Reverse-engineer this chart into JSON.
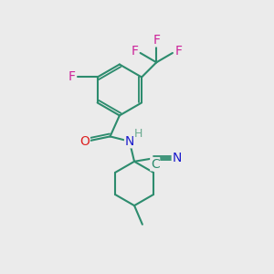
{
  "bg_color": "#ebebeb",
  "bond_color": "#2d8c6e",
  "bond_width": 1.5,
  "atom_colors": {
    "F": "#cc2299",
    "O": "#dd2222",
    "N": "#1a1acc",
    "C": "#2d8c6e",
    "H": "#6aaa90"
  },
  "font_size": 10
}
